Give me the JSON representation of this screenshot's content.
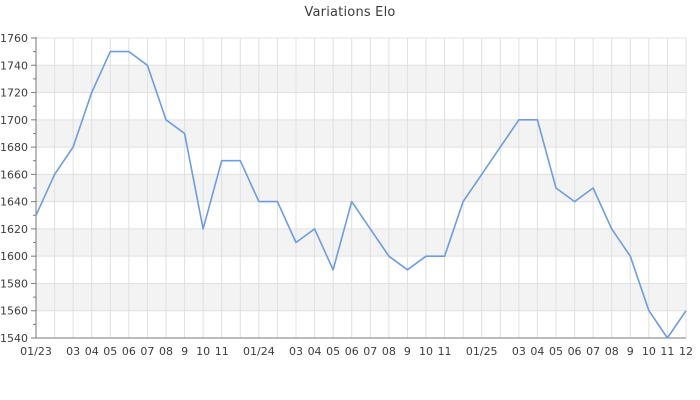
{
  "chart_data": {
    "type": "line",
    "title": "Variations Elo",
    "x_labels": [
      "01/23",
      "",
      "03",
      "04",
      "05",
      "06",
      "07",
      "08",
      "9",
      "10",
      "11",
      "",
      "01/24",
      "",
      "03",
      "04",
      "05",
      "06",
      "07",
      "08",
      "9",
      "10",
      "11",
      "",
      "01/25",
      "",
      "03",
      "04",
      "05",
      "06",
      "07",
      "08",
      "9",
      "10",
      "11",
      "12"
    ],
    "values": [
      1630,
      1660,
      1680,
      1720,
      1750,
      1750,
      1740,
      1700,
      1690,
      1620,
      1670,
      1670,
      1640,
      1640,
      1610,
      1620,
      1590,
      1640,
      1620,
      1600,
      1590,
      1600,
      1600,
      1640,
      1660,
      1680,
      1700,
      1700,
      1650,
      1640,
      1650,
      1620,
      1600,
      1560,
      1540,
      1560
    ],
    "ylim": [
      1540,
      1760
    ],
    "y_ticks": [
      1540,
      1560,
      1580,
      1600,
      1620,
      1640,
      1660,
      1680,
      1700,
      1720,
      1740,
      1760
    ],
    "y_minor_tick_step": 10,
    "grid": true,
    "legend": "none",
    "colors": {
      "line": "#6e9ce0",
      "grid": "#e0e0e0",
      "alternate_band": "#f3f3f3",
      "axis": "#7a7a7a",
      "label": "#3d3d3d"
    }
  }
}
